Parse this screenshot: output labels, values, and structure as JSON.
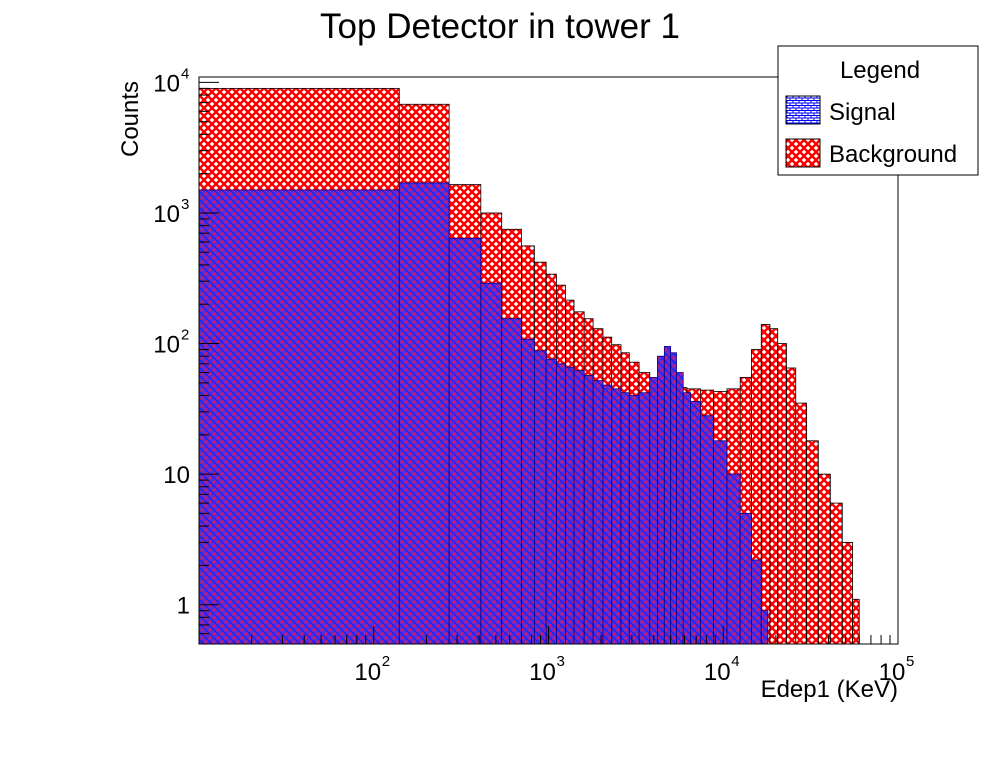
{
  "chart_data": {
    "type": "bar",
    "title": "Top Detector in tower 1",
    "xlabel": "Edep1 (KeV)",
    "ylabel": "Counts",
    "x_scale": "log",
    "y_scale": "log",
    "xlim": [
      10,
      100000
    ],
    "ylim": [
      0.5,
      11000
    ],
    "grid": false,
    "legend": {
      "title": "Legend",
      "placement": "top-right",
      "entries": [
        "Signal",
        "Background"
      ]
    },
    "x_ticks": [
      {
        "base": "10",
        "exp": "2",
        "value": 100
      },
      {
        "base": "10",
        "exp": "3",
        "value": 1000
      },
      {
        "base": "10",
        "exp": "4",
        "value": 10000
      },
      {
        "base": "10",
        "exp": "5",
        "value": 100000
      }
    ],
    "y_ticks": [
      {
        "base": "1",
        "exp": "",
        "value": 1
      },
      {
        "base": "10",
        "exp": "",
        "value": 10
      },
      {
        "base": "10",
        "exp": "2",
        "value": 100
      },
      {
        "base": "10",
        "exp": "3",
        "value": 1000
      },
      {
        "base": "10",
        "exp": "4",
        "value": 10000
      }
    ],
    "series": [
      {
        "name": "Background",
        "color": "#ff0000",
        "fill_pattern": "crosshatch",
        "bins": [
          {
            "x0": 10,
            "x1": 140,
            "y": 9000
          },
          {
            "x0": 140,
            "x1": 270,
            "y": 6800
          },
          {
            "x0": 270,
            "x1": 410,
            "y": 1650
          },
          {
            "x0": 410,
            "x1": 540,
            "y": 1000
          },
          {
            "x0": 540,
            "x1": 700,
            "y": 750
          },
          {
            "x0": 700,
            "x1": 830,
            "y": 560
          },
          {
            "x0": 830,
            "x1": 970,
            "y": 420
          },
          {
            "x0": 970,
            "x1": 1110,
            "y": 340
          },
          {
            "x0": 1110,
            "x1": 1250,
            "y": 280
          },
          {
            "x0": 1250,
            "x1": 1400,
            "y": 215
          },
          {
            "x0": 1400,
            "x1": 1600,
            "y": 175
          },
          {
            "x0": 1600,
            "x1": 1800,
            "y": 155
          },
          {
            "x0": 1800,
            "x1": 2050,
            "y": 130
          },
          {
            "x0": 2050,
            "x1": 2300,
            "y": 112
          },
          {
            "x0": 2300,
            "x1": 2600,
            "y": 98
          },
          {
            "x0": 2600,
            "x1": 2900,
            "y": 85
          },
          {
            "x0": 2900,
            "x1": 3300,
            "y": 72
          },
          {
            "x0": 3300,
            "x1": 3800,
            "y": 60
          },
          {
            "x0": 3800,
            "x1": 4400,
            "y": 52
          },
          {
            "x0": 4400,
            "x1": 5200,
            "y": 48
          },
          {
            "x0": 5200,
            "x1": 6200,
            "y": 46
          },
          {
            "x0": 6200,
            "x1": 7400,
            "y": 45
          },
          {
            "x0": 7400,
            "x1": 8800,
            "y": 44
          },
          {
            "x0": 8800,
            "x1": 10500,
            "y": 43
          },
          {
            "x0": 10500,
            "x1": 12500,
            "y": 45
          },
          {
            "x0": 12500,
            "x1": 14500,
            "y": 55
          },
          {
            "x0": 14500,
            "x1": 16500,
            "y": 90
          },
          {
            "x0": 16500,
            "x1": 18500,
            "y": 140
          },
          {
            "x0": 18500,
            "x1": 20500,
            "y": 130
          },
          {
            "x0": 20500,
            "x1": 23000,
            "y": 100
          },
          {
            "x0": 23000,
            "x1": 26000,
            "y": 65
          },
          {
            "x0": 26000,
            "x1": 30000,
            "y": 35
          },
          {
            "x0": 30000,
            "x1": 35000,
            "y": 18
          },
          {
            "x0": 35000,
            "x1": 41000,
            "y": 10
          },
          {
            "x0": 41000,
            "x1": 48000,
            "y": 6
          },
          {
            "x0": 48000,
            "x1": 55000,
            "y": 3
          },
          {
            "x0": 55000,
            "x1": 60000,
            "y": 1.1
          }
        ]
      },
      {
        "name": "Signal",
        "color": "#0000ff",
        "fill_pattern": "brick",
        "bins": [
          {
            "x0": 10,
            "x1": 140,
            "y": 1500
          },
          {
            "x0": 140,
            "x1": 270,
            "y": 1700
          },
          {
            "x0": 270,
            "x1": 410,
            "y": 640
          },
          {
            "x0": 410,
            "x1": 540,
            "y": 290
          },
          {
            "x0": 540,
            "x1": 700,
            "y": 155
          },
          {
            "x0": 700,
            "x1": 830,
            "y": 108
          },
          {
            "x0": 830,
            "x1": 970,
            "y": 88
          },
          {
            "x0": 970,
            "x1": 1110,
            "y": 76
          },
          {
            "x0": 1110,
            "x1": 1250,
            "y": 70
          },
          {
            "x0": 1250,
            "x1": 1400,
            "y": 66
          },
          {
            "x0": 1400,
            "x1": 1600,
            "y": 62
          },
          {
            "x0": 1600,
            "x1": 1800,
            "y": 57
          },
          {
            "x0": 1800,
            "x1": 2050,
            "y": 52
          },
          {
            "x0": 2050,
            "x1": 2300,
            "y": 48
          },
          {
            "x0": 2300,
            "x1": 2600,
            "y": 45
          },
          {
            "x0": 2600,
            "x1": 2900,
            "y": 42
          },
          {
            "x0": 2900,
            "x1": 3300,
            "y": 40
          },
          {
            "x0": 3300,
            "x1": 3800,
            "y": 42
          },
          {
            "x0": 3800,
            "x1": 4200,
            "y": 55
          },
          {
            "x0": 4200,
            "x1": 4600,
            "y": 80
          },
          {
            "x0": 4600,
            "x1": 5000,
            "y": 95
          },
          {
            "x0": 5000,
            "x1": 5400,
            "y": 85
          },
          {
            "x0": 5400,
            "x1": 5900,
            "y": 60
          },
          {
            "x0": 5900,
            "x1": 6500,
            "y": 42
          },
          {
            "x0": 6500,
            "x1": 7400,
            "y": 36
          },
          {
            "x0": 7400,
            "x1": 8800,
            "y": 28
          },
          {
            "x0": 8800,
            "x1": 10500,
            "y": 18
          },
          {
            "x0": 10500,
            "x1": 12500,
            "y": 10
          },
          {
            "x0": 12500,
            "x1": 14500,
            "y": 5
          },
          {
            "x0": 14500,
            "x1": 16500,
            "y": 2.2
          },
          {
            "x0": 16500,
            "x1": 18000,
            "y": 0.9
          }
        ]
      }
    ]
  }
}
